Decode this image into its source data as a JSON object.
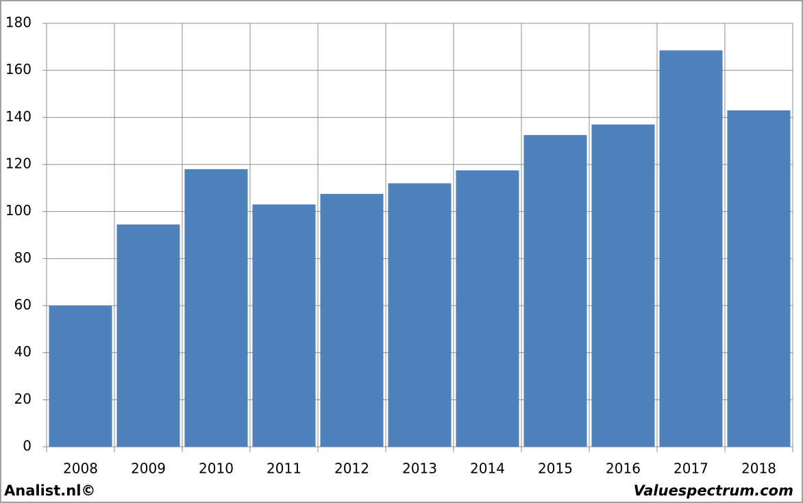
{
  "chart_data": {
    "type": "bar",
    "categories": [
      "2008",
      "2009",
      "2010",
      "2011",
      "2012",
      "2013",
      "2014",
      "2015",
      "2016",
      "2017",
      "2018"
    ],
    "values": [
      60,
      94.5,
      118,
      103,
      107.5,
      112,
      117.5,
      132.5,
      137,
      168.5,
      143
    ],
    "color": "#4f81bd",
    "ylim": [
      0,
      180
    ],
    "yticks": [
      0,
      20,
      40,
      60,
      80,
      100,
      120,
      140,
      160,
      180
    ],
    "grid": true,
    "credits": [
      "Analist.nl©",
      "Valuespectrum.com"
    ]
  }
}
